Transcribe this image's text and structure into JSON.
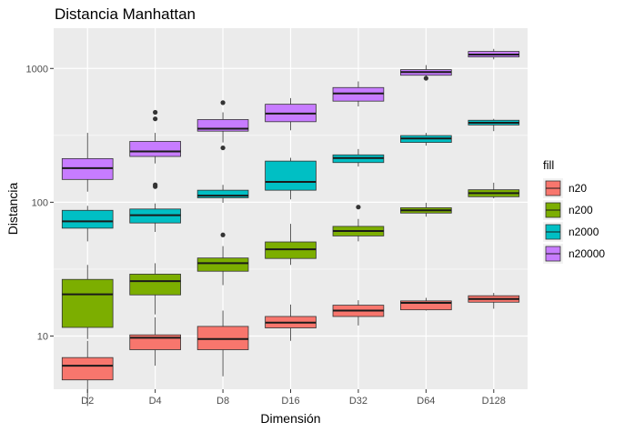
{
  "chart_data": {
    "type": "boxplot",
    "title": "Distancia Manhattan",
    "xlabel": "Dimensión",
    "ylabel": "Distancia",
    "y_scale": "log10",
    "ylim": [
      4.0,
      2000
    ],
    "y_ticks": [
      10,
      100,
      1000
    ],
    "y_tick_labels": [
      "10",
      "100",
      "1000"
    ],
    "grid": true,
    "categories": [
      "D2",
      "D4",
      "D8",
      "D16",
      "D32",
      "D64",
      "D128"
    ],
    "legend": {
      "title": "fill",
      "position": "right"
    },
    "series": [
      {
        "name": "n20",
        "color": "#F8766D",
        "boxes": [
          {
            "min": 3.0,
            "q1": 4.7,
            "median": 6.0,
            "q3": 6.9,
            "max": 9.2,
            "outliers": []
          },
          {
            "min": 6.0,
            "q1": 7.9,
            "median": 9.7,
            "q3": 10.2,
            "max": 13.8,
            "outliers": []
          },
          {
            "min": 5.0,
            "q1": 7.9,
            "median": 9.5,
            "q3": 11.8,
            "max": 15.5,
            "outliers": []
          },
          {
            "min": 9.2,
            "q1": 11.5,
            "median": 12.6,
            "q3": 14.0,
            "max": 17.2,
            "outliers": []
          },
          {
            "min": 12.0,
            "q1": 14.0,
            "median": 15.5,
            "q3": 17.0,
            "max": 18.5,
            "outliers": []
          },
          {
            "min": 15.5,
            "q1": 15.7,
            "median": 17.7,
            "q3": 18.3,
            "max": 19.3,
            "outliers": []
          },
          {
            "min": 16.0,
            "q1": 17.9,
            "median": 18.9,
            "q3": 20.0,
            "max": 21.0,
            "outliers": []
          }
        ]
      },
      {
        "name": "n200",
        "color": "#7CAE00",
        "boxes": [
          {
            "min": 9.5,
            "q1": 11.6,
            "median": 20.5,
            "q3": 26.5,
            "max": 34.0,
            "outliers": []
          },
          {
            "min": 14.5,
            "q1": 20.3,
            "median": 25.7,
            "q3": 29.0,
            "max": 35.0,
            "outliers": []
          },
          {
            "min": 24.0,
            "q1": 30.5,
            "median": 35.0,
            "q3": 38.3,
            "max": 47.0,
            "outliers": [
              57
            ]
          },
          {
            "min": 34.0,
            "q1": 38.0,
            "median": 44.5,
            "q3": 50.5,
            "max": 69.0,
            "outliers": []
          },
          {
            "min": 51.0,
            "q1": 56.0,
            "median": 61.0,
            "q3": 66.0,
            "max": 75.0,
            "outliers": [
              92
            ]
          },
          {
            "min": 78.0,
            "q1": 83.0,
            "median": 87.0,
            "q3": 91.0,
            "max": 99.0,
            "outliers": []
          },
          {
            "min": 107.0,
            "q1": 110.0,
            "median": 117.0,
            "q3": 124.0,
            "max": 140.0,
            "outliers": []
          }
        ]
      },
      {
        "name": "n2000",
        "color": "#00BFC4",
        "boxes": [
          {
            "min": 51.0,
            "q1": 64.0,
            "median": 72.0,
            "q3": 87.0,
            "max": 94.0,
            "outliers": []
          },
          {
            "min": 60.0,
            "q1": 70.0,
            "median": 80.0,
            "q3": 89.0,
            "max": 98.0,
            "outliers": [
              131,
              135
            ]
          },
          {
            "min": 99.0,
            "q1": 108.0,
            "median": 112.0,
            "q3": 123.0,
            "max": 135.0,
            "outliers": []
          },
          {
            "min": 105.0,
            "q1": 123.0,
            "median": 142.0,
            "q3": 203.0,
            "max": 215.0,
            "outliers": []
          },
          {
            "min": 185.0,
            "q1": 198.0,
            "median": 214.0,
            "q3": 226.0,
            "max": 250.0,
            "outliers": []
          },
          {
            "min": 265.0,
            "q1": 280.0,
            "median": 300.0,
            "q3": 315.0,
            "max": 330.0,
            "outliers": []
          },
          {
            "min": 340.0,
            "q1": 378.0,
            "median": 393.0,
            "q3": 410.0,
            "max": 420.0,
            "outliers": []
          }
        ]
      },
      {
        "name": "n20000",
        "color": "#C77CFF",
        "boxes": [
          {
            "min": 120.0,
            "q1": 148.0,
            "median": 180.0,
            "q3": 212.0,
            "max": 330.0,
            "outliers": []
          },
          {
            "min": 195.0,
            "q1": 220.0,
            "median": 240.0,
            "q3": 285.0,
            "max": 330.0,
            "outliers": [
              420,
              470
            ]
          },
          {
            "min": 280.0,
            "q1": 340.0,
            "median": 355.0,
            "q3": 415.0,
            "max": 470.0,
            "outliers": [
              255,
              555
            ]
          },
          {
            "min": 345.0,
            "q1": 400.0,
            "median": 460.0,
            "q3": 540.0,
            "max": 600.0,
            "outliers": []
          },
          {
            "min": 520.0,
            "q1": 570.0,
            "median": 650.0,
            "q3": 720.0,
            "max": 800.0,
            "outliers": []
          },
          {
            "min": 850.0,
            "q1": 890.0,
            "median": 940.0,
            "q3": 980.0,
            "max": 1060.0,
            "outliers": [
              845
            ]
          },
          {
            "min": 1170.0,
            "q1": 1220.0,
            "median": 1270.0,
            "q3": 1340.0,
            "max": 1400.0,
            "outliers": []
          }
        ]
      }
    ]
  }
}
